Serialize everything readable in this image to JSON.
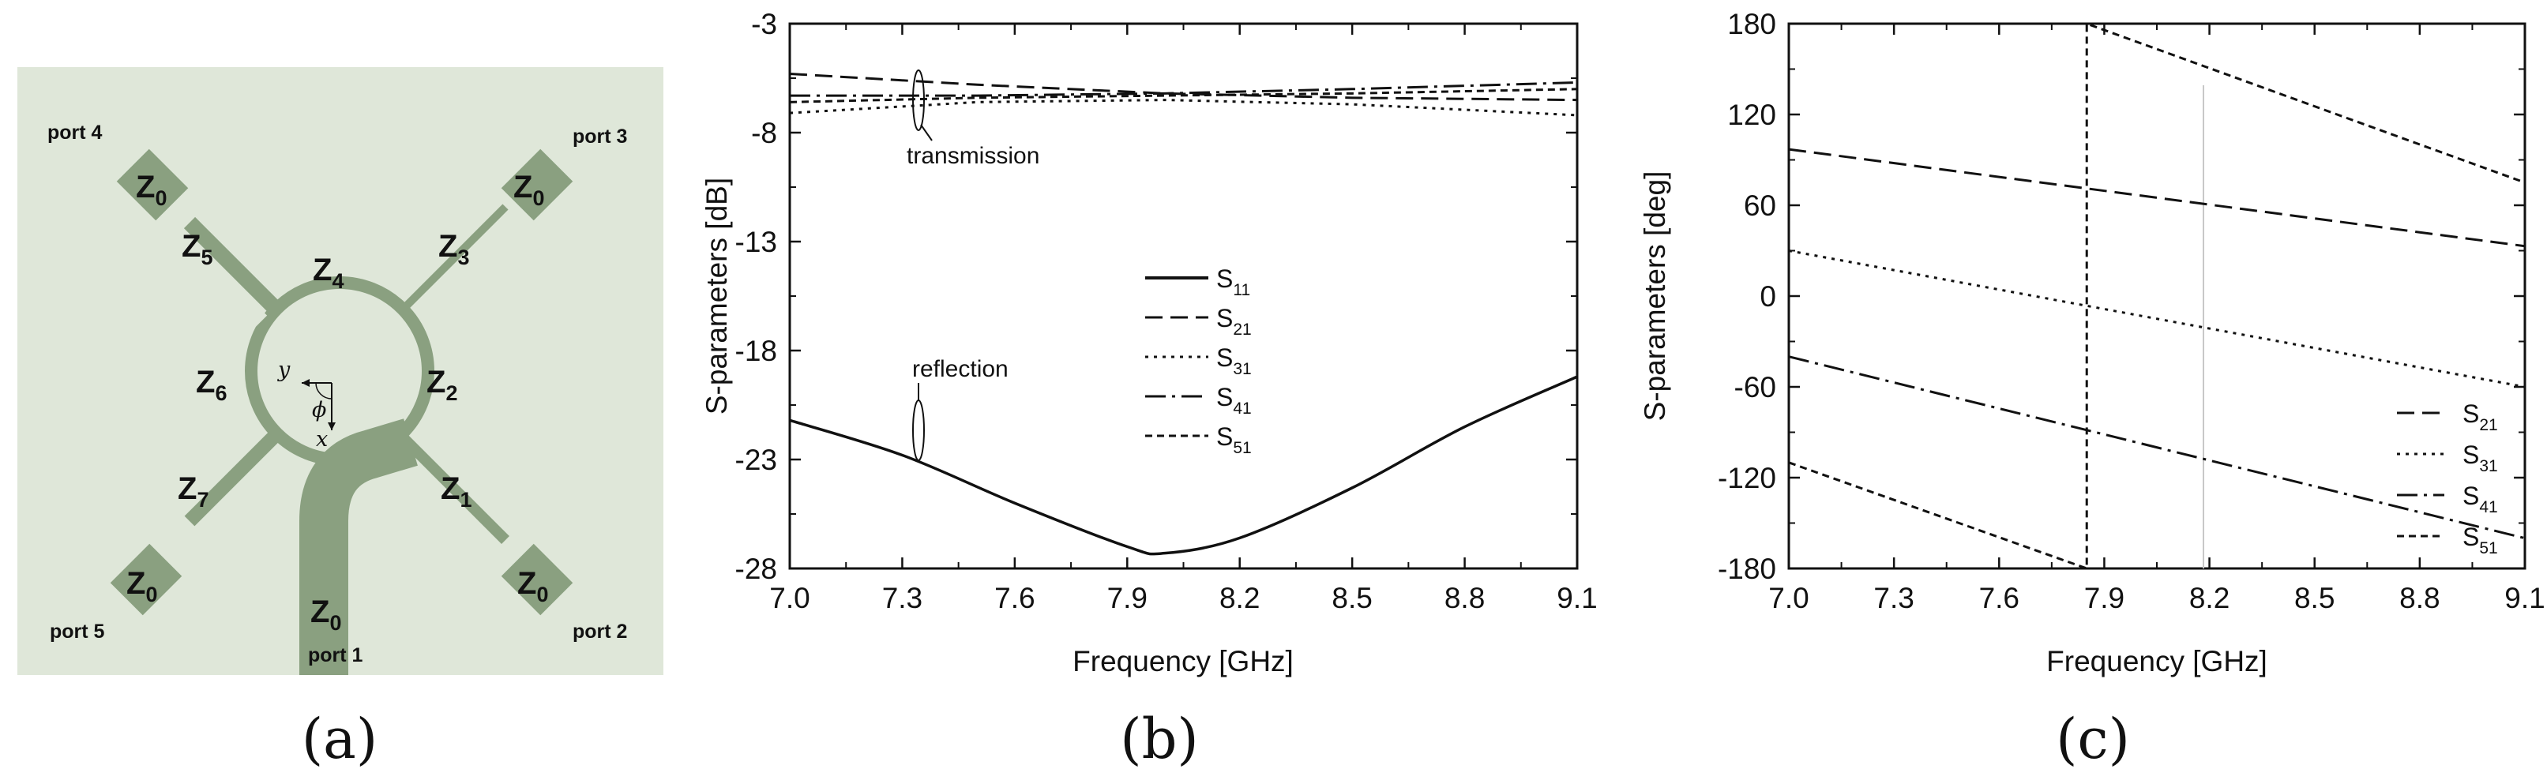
{
  "panel_a": {
    "label": "(a)",
    "background": "#dfe7d9",
    "strip_color": "#8aa080",
    "pads": [
      {
        "name": "port-4-pad",
        "text": "Z",
        "sub": "0"
      },
      {
        "name": "port-3-pad",
        "text": "Z",
        "sub": "0"
      },
      {
        "name": "port-5-pad",
        "text": "Z",
        "sub": "0"
      },
      {
        "name": "port-2-pad",
        "text": "Z",
        "sub": "0"
      },
      {
        "name": "port-1-feed",
        "text": "Z",
        "sub": "0"
      }
    ],
    "impedances": [
      {
        "text": "Z",
        "sub": "1"
      },
      {
        "text": "Z",
        "sub": "2"
      },
      {
        "text": "Z",
        "sub": "3"
      },
      {
        "text": "Z",
        "sub": "4"
      },
      {
        "text": "Z",
        "sub": "5"
      },
      {
        "text": "Z",
        "sub": "6"
      },
      {
        "text": "Z",
        "sub": "7"
      }
    ],
    "ports": [
      "port 1",
      "port 2",
      "port 3",
      "port 4",
      "port 5"
    ],
    "coords": {
      "y": "y",
      "x": "x",
      "phi": "ϕ"
    }
  },
  "chart_data": [
    {
      "type": "line",
      "panel_label": "(b)",
      "xlabel": "Frequency [GHz]",
      "ylabel": "S-parameters [dB]",
      "xlim": [
        7.0,
        9.1
      ],
      "ylim": [
        -28,
        -3
      ],
      "xticks": [
        "7.0",
        "7.3",
        "7.6",
        "7.9",
        "8.2",
        "8.5",
        "8.8",
        "9.1"
      ],
      "yticks": [
        "-3",
        "-8",
        "-13",
        "-18",
        "-23",
        "-28"
      ],
      "annotations": [
        "transmission",
        "reflection"
      ],
      "legend_position": "center-right",
      "legend": [
        {
          "name": "S",
          "sub": "11",
          "style": "solid"
        },
        {
          "name": "S",
          "sub": "21",
          "style": "dashed"
        },
        {
          "name": "S",
          "sub": "31",
          "style": "dotted"
        },
        {
          "name": "S",
          "sub": "41",
          "style": "dashdot"
        },
        {
          "name": "S",
          "sub": "51",
          "style": "shortdash"
        }
      ],
      "series": [
        {
          "name": "S11",
          "style": "solid",
          "x": [
            7.0,
            7.3,
            7.6,
            7.9,
            8.0,
            8.2,
            8.5,
            8.8,
            9.1
          ],
          "y": [
            -21.2,
            -22.8,
            -25.0,
            -27.0,
            -27.3,
            -26.6,
            -24.3,
            -21.5,
            -19.2
          ]
        },
        {
          "name": "S21",
          "style": "dashed",
          "x": [
            7.0,
            7.5,
            8.0,
            8.5,
            9.1
          ],
          "y": [
            -5.3,
            -5.8,
            -6.2,
            -6.4,
            -6.5
          ]
        },
        {
          "name": "S31",
          "style": "dotted",
          "x": [
            7.0,
            7.5,
            8.0,
            8.5,
            9.1
          ],
          "y": [
            -7.1,
            -6.6,
            -6.5,
            -6.7,
            -7.2
          ]
        },
        {
          "name": "S41",
          "style": "dashdot",
          "x": [
            7.0,
            7.5,
            8.0,
            8.5,
            9.1
          ],
          "y": [
            -6.3,
            -6.3,
            -6.2,
            -6.0,
            -5.7
          ]
        },
        {
          "name": "S51",
          "style": "shortdash",
          "x": [
            7.0,
            7.5,
            8.0,
            8.5,
            9.1
          ],
          "y": [
            -6.6,
            -6.4,
            -6.3,
            -6.2,
            -6.0
          ]
        }
      ]
    },
    {
      "type": "line",
      "panel_label": "(c)",
      "xlabel": "Frequency [GHz]",
      "ylabel": "S-parameters [deg]",
      "xlim": [
        7.0,
        9.1
      ],
      "ylim": [
        -180,
        180
      ],
      "xticks": [
        "7.0",
        "7.3",
        "7.6",
        "7.9",
        "8.2",
        "8.5",
        "8.8",
        "9.1"
      ],
      "yticks": [
        "180",
        "120",
        "60",
        "0",
        "-60",
        "-120",
        "-180"
      ],
      "legend_position": "bottom-right",
      "legend": [
        {
          "name": "S",
          "sub": "21",
          "style": "dashed"
        },
        {
          "name": "S",
          "sub": "31",
          "style": "dotted"
        },
        {
          "name": "S",
          "sub": "41",
          "style": "dashdot"
        },
        {
          "name": "S",
          "sub": "51",
          "style": "shortdash"
        }
      ],
      "series": [
        {
          "name": "S21",
          "style": "dashed",
          "x": [
            7.0,
            9.1
          ],
          "y": [
            97,
            33
          ]
        },
        {
          "name": "S31",
          "style": "dotted",
          "x": [
            7.0,
            9.1
          ],
          "y": [
            30,
            -60
          ]
        },
        {
          "name": "S41",
          "style": "dashdot",
          "x": [
            7.0,
            9.1
          ],
          "y": [
            -40,
            -160
          ]
        },
        {
          "name": "S51",
          "style": "shortdash",
          "x": [
            7.0,
            7.85,
            7.85,
            7.85,
            9.1
          ],
          "y": [
            -110,
            -180,
            -180,
            180,
            75
          ]
        }
      ]
    }
  ]
}
